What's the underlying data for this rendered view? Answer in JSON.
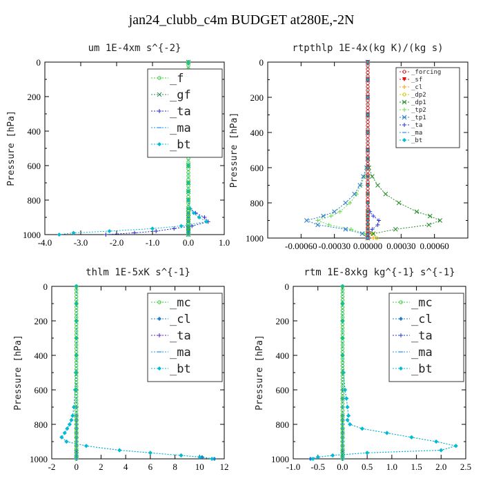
{
  "title": "jan24_clubb_c4m  BUDGET at280E,-2N",
  "chart_data": [
    {
      "type": "line",
      "title": "um   1E-4xm s^{-2}",
      "ylabel": "Pressure [hPa]",
      "xlim": [
        -4.0,
        1.0
      ],
      "ylim": [
        1000,
        0
      ],
      "xticks": [
        -4.0,
        -3.0,
        -2.0,
        -1.0,
        0.0,
        1.0
      ],
      "xtick_labels": [
        "-4.0",
        "-3.0",
        "-2.0",
        "-1.0",
        "0.0",
        "1.0"
      ],
      "yticks": [
        0,
        200,
        400,
        600,
        800,
        1000
      ],
      "legend": "top-right",
      "legend_size": "large",
      "y": [
        0,
        100,
        200,
        300,
        400,
        500,
        600,
        700,
        750,
        800,
        850,
        875,
        900,
        925,
        950,
        965,
        980,
        990,
        1000
      ],
      "series": [
        {
          "name": "_f",
          "color": "#33cc33",
          "marker": "circle",
          "values": [
            0,
            0,
            0,
            0,
            0,
            0,
            0,
            0,
            0,
            0,
            0,
            0,
            0,
            0,
            0,
            0,
            0,
            0,
            0
          ]
        },
        {
          "name": "_gf",
          "color": "#2e8b57",
          "marker": "x",
          "values": [
            0,
            0,
            0,
            0,
            0,
            0,
            0,
            0,
            0,
            0,
            0,
            0,
            0,
            0,
            0,
            0,
            0,
            0,
            0
          ]
        },
        {
          "name": "_ta",
          "color": "#2222cc",
          "marker": "plus",
          "values": [
            0,
            0,
            0,
            0,
            0,
            0,
            0,
            0,
            0,
            0,
            0.05,
            0.2,
            0.45,
            0.55,
            0.1,
            -0.4,
            -0.9,
            -1.5,
            -2.3
          ]
        },
        {
          "name": "_ma",
          "color": "#1e90ff",
          "marker": "dash",
          "values": [
            0,
            0,
            0,
            0,
            0,
            0,
            0,
            0,
            0,
            0,
            0,
            0,
            0,
            0,
            0,
            0,
            0,
            0,
            0
          ]
        },
        {
          "name": "_bt",
          "color": "#00bcd4",
          "marker": "diamond",
          "values": [
            0,
            0,
            0,
            0,
            0,
            0,
            0,
            0,
            0,
            0,
            0.05,
            0.15,
            0.3,
            0.5,
            -0.2,
            -1.0,
            -2.2,
            -3.2,
            -3.6
          ]
        }
      ]
    },
    {
      "type": "line",
      "title": "rtpthlp   1E-4x(kg K)/(kg s)",
      "ylabel": "Pressure [hPa]",
      "xlim": [
        -0.0009,
        0.0009
      ],
      "ylim": [
        1000,
        0
      ],
      "xticks": [
        -0.0006,
        -0.0003,
        0.0,
        0.0003,
        0.0006
      ],
      "xtick_labels": [
        "-0.00060",
        "-0.00030",
        "0.00000",
        "0.00030",
        "0.00060"
      ],
      "yticks": [
        0,
        200,
        400,
        600,
        800,
        1000
      ],
      "legend": "top-right",
      "legend_size": "small",
      "y": [
        0,
        100,
        200,
        300,
        400,
        500,
        550,
        600,
        650,
        700,
        750,
        800,
        850,
        875,
        900,
        925,
        950,
        975,
        1000
      ],
      "series": [
        {
          "name": "_forcing",
          "color": "#cc2222",
          "marker": "circle",
          "values": [
            0,
            0,
            0,
            0,
            0,
            0,
            0,
            0,
            0,
            0,
            0,
            0,
            0,
            0,
            0,
            0,
            0,
            0,
            0
          ]
        },
        {
          "name": "_sf",
          "color": "#dd1111",
          "marker": "triangle",
          "values": [
            0,
            0,
            0,
            0,
            0,
            0,
            0,
            0,
            0,
            0,
            0,
            0,
            0,
            0,
            0,
            0,
            0,
            0,
            0
          ]
        },
        {
          "name": "_cl",
          "color": "#ff9900",
          "marker": "plus",
          "values": [
            0,
            0,
            0,
            0,
            0,
            0,
            0,
            0,
            0,
            0,
            0,
            0,
            0,
            0,
            0,
            0,
            0,
            3e-05,
            5e-05
          ]
        },
        {
          "name": "_dp2",
          "color": "#cccc00",
          "marker": "circle",
          "values": [
            0,
            0,
            0,
            0,
            0,
            0,
            0,
            0,
            0,
            0,
            0,
            0,
            0,
            0,
            0,
            0,
            0,
            4e-05,
            8e-05
          ]
        },
        {
          "name": "_dp1",
          "color": "#228b22",
          "marker": "x",
          "values": [
            0,
            0,
            0,
            0,
            0,
            0,
            0,
            1e-05,
            4e-05,
            9e-05,
            0.00016,
            0.00028,
            0.00044,
            0.00056,
            0.00065,
            0.00055,
            0.00025,
            5e-05,
            0
          ]
        },
        {
          "name": "_tp2",
          "color": "#66dd44",
          "marker": "plus",
          "values": [
            0,
            0,
            0,
            0,
            0,
            0,
            0,
            -1e-05,
            -3e-05,
            -6e-05,
            -0.0001,
            -0.00016,
            -0.00025,
            -0.00033,
            -0.00045,
            -0.00035,
            -0.00015,
            -3e-05,
            0
          ]
        },
        {
          "name": "_tp1",
          "color": "#2277cc",
          "marker": "x",
          "values": [
            0,
            0,
            0,
            0,
            0,
            0,
            0,
            -1e-05,
            -4e-05,
            -7e-05,
            -0.00012,
            -0.0002,
            -0.0003,
            -0.0004,
            -0.00055,
            -0.00045,
            -0.0002,
            -5e-05,
            0
          ]
        },
        {
          "name": "_ta",
          "color": "#2233dd",
          "marker": "plus",
          "values": [
            0,
            0,
            0,
            0,
            0,
            0,
            0,
            0,
            0,
            0,
            0,
            0,
            2e-05,
            5e-05,
            0.0001,
            9e-05,
            4e-05,
            1e-05,
            0
          ]
        },
        {
          "name": "_ma",
          "color": "#1e90ff",
          "marker": "dash",
          "values": [
            0,
            0,
            0,
            0,
            0,
            0,
            0,
            0,
            0,
            0,
            0,
            0,
            0,
            0,
            0,
            0,
            0,
            0,
            0
          ]
        },
        {
          "name": "_bt",
          "color": "#00bcd4",
          "marker": "diamond",
          "values": [
            0,
            0,
            0,
            0,
            0,
            0,
            0,
            0,
            0,
            0,
            0,
            0,
            0,
            0,
            0,
            0,
            0,
            0,
            0
          ]
        }
      ]
    },
    {
      "type": "line",
      "title": "thlm   1E-5xK s^{-1}",
      "ylabel": "Pressure [hPa]",
      "xlim": [
        -2,
        12
      ],
      "ylim": [
        1000,
        0
      ],
      "xticks": [
        -2,
        0,
        2,
        4,
        6,
        8,
        10,
        12
      ],
      "xtick_labels": [
        "-2",
        "0",
        "2",
        "4",
        "6",
        "8",
        "10",
        "12"
      ],
      "yticks": [
        0,
        200,
        400,
        600,
        800,
        1000
      ],
      "legend": "top-right",
      "legend_size": "large",
      "y": [
        0,
        100,
        200,
        300,
        400,
        500,
        600,
        700,
        750,
        775,
        800,
        825,
        850,
        875,
        900,
        925,
        950,
        965,
        980,
        990,
        1000
      ],
      "series": [
        {
          "name": "_mc",
          "color": "#33cc33",
          "marker": "circle",
          "values": [
            0,
            0,
            0,
            0,
            0,
            0,
            0,
            0,
            0,
            0,
            0,
            0,
            0,
            0,
            0,
            0,
            0,
            0,
            0,
            0,
            0
          ]
        },
        {
          "name": "_cl",
          "color": "#1e7fcc",
          "marker": "diamond",
          "values": [
            0,
            0,
            0,
            0,
            0,
            -0.05,
            -0.1,
            -0.2,
            -0.3,
            -0.4,
            -0.55,
            -0.75,
            -0.95,
            -1.2,
            -0.8,
            0.8,
            3.5,
            6.0,
            8.5,
            10.2,
            11.2
          ]
        },
        {
          "name": "_ta",
          "color": "#5522cc",
          "marker": "plus",
          "values": [
            0,
            0,
            0,
            0,
            0,
            0,
            0,
            0,
            0,
            0,
            0,
            0,
            0,
            0,
            0,
            0,
            0,
            0,
            0,
            0,
            0
          ]
        },
        {
          "name": "_ma",
          "color": "#1e90ff",
          "marker": "dash",
          "values": [
            0,
            0,
            0,
            0,
            0,
            0,
            0,
            0,
            0,
            0,
            0,
            0,
            0,
            0,
            0,
            0,
            0,
            0,
            0,
            0,
            0
          ]
        },
        {
          "name": "_bt",
          "color": "#00bcd4",
          "marker": "diamond",
          "values": [
            0,
            0,
            0,
            0,
            0,
            -0.05,
            -0.1,
            -0.2,
            -0.3,
            -0.4,
            -0.55,
            -0.75,
            -0.95,
            -1.2,
            -0.8,
            0.8,
            3.5,
            6.0,
            8.5,
            10.0,
            11.0
          ]
        }
      ]
    },
    {
      "type": "line",
      "title": "rtm   1E-8xkg kg^{-1} s^{-1}",
      "ylabel": "Pressure [hPa]",
      "xlim": [
        -1.0,
        2.5
      ],
      "ylim": [
        1000,
        0
      ],
      "xticks": [
        -1.0,
        -0.5,
        0.0,
        0.5,
        1.0,
        1.5,
        2.0,
        2.5
      ],
      "xtick_labels": [
        "-1.0",
        "-0.5",
        "0.0",
        "0.5",
        "1.0",
        "1.5",
        "2.0",
        "2.5"
      ],
      "yticks": [
        0,
        200,
        400,
        600,
        800,
        1000
      ],
      "legend": "top-right",
      "legend_size": "large",
      "y": [
        0,
        100,
        200,
        300,
        400,
        500,
        600,
        650,
        700,
        750,
        775,
        800,
        825,
        850,
        875,
        900,
        925,
        950,
        965,
        980,
        990,
        1000
      ],
      "series": [
        {
          "name": "_mc",
          "color": "#33cc33",
          "marker": "circle",
          "values": [
            0,
            0,
            0,
            0,
            0,
            0,
            0,
            0,
            0,
            0,
            0,
            0,
            0,
            0,
            0,
            0,
            0,
            0,
            0,
            0,
            0,
            0
          ]
        },
        {
          "name": "_cl",
          "color": "#1e7fcc",
          "marker": "diamond",
          "values": [
            0,
            0,
            0,
            0,
            0,
            0.02,
            0.05,
            0.08,
            0.1,
            0.12,
            0.1,
            0.15,
            0.4,
            0.9,
            1.4,
            1.9,
            2.3,
            2.0,
            0.5,
            -0.2,
            -0.5,
            -0.65
          ]
        },
        {
          "name": "_ta",
          "color": "#2233dd",
          "marker": "plus",
          "values": [
            0,
            0,
            0,
            0,
            0,
            0,
            0,
            0,
            0,
            0,
            0,
            0,
            0,
            0,
            0,
            0,
            0,
            0,
            0,
            0,
            0,
            0
          ]
        },
        {
          "name": "_ma",
          "color": "#1e90ff",
          "marker": "dash",
          "values": [
            0,
            0,
            0,
            0,
            0,
            0,
            0,
            0,
            0,
            0,
            0,
            0,
            0,
            0,
            0,
            0,
            0,
            0,
            0,
            0,
            0,
            0
          ]
        },
        {
          "name": "_bt",
          "color": "#00bcd4",
          "marker": "diamond",
          "values": [
            0,
            0,
            0,
            0,
            0,
            0.02,
            0.05,
            0.08,
            0.1,
            0.12,
            0.1,
            0.15,
            0.4,
            0.9,
            1.4,
            1.9,
            2.3,
            2.0,
            0.5,
            -0.2,
            -0.5,
            -0.6
          ]
        }
      ]
    }
  ]
}
